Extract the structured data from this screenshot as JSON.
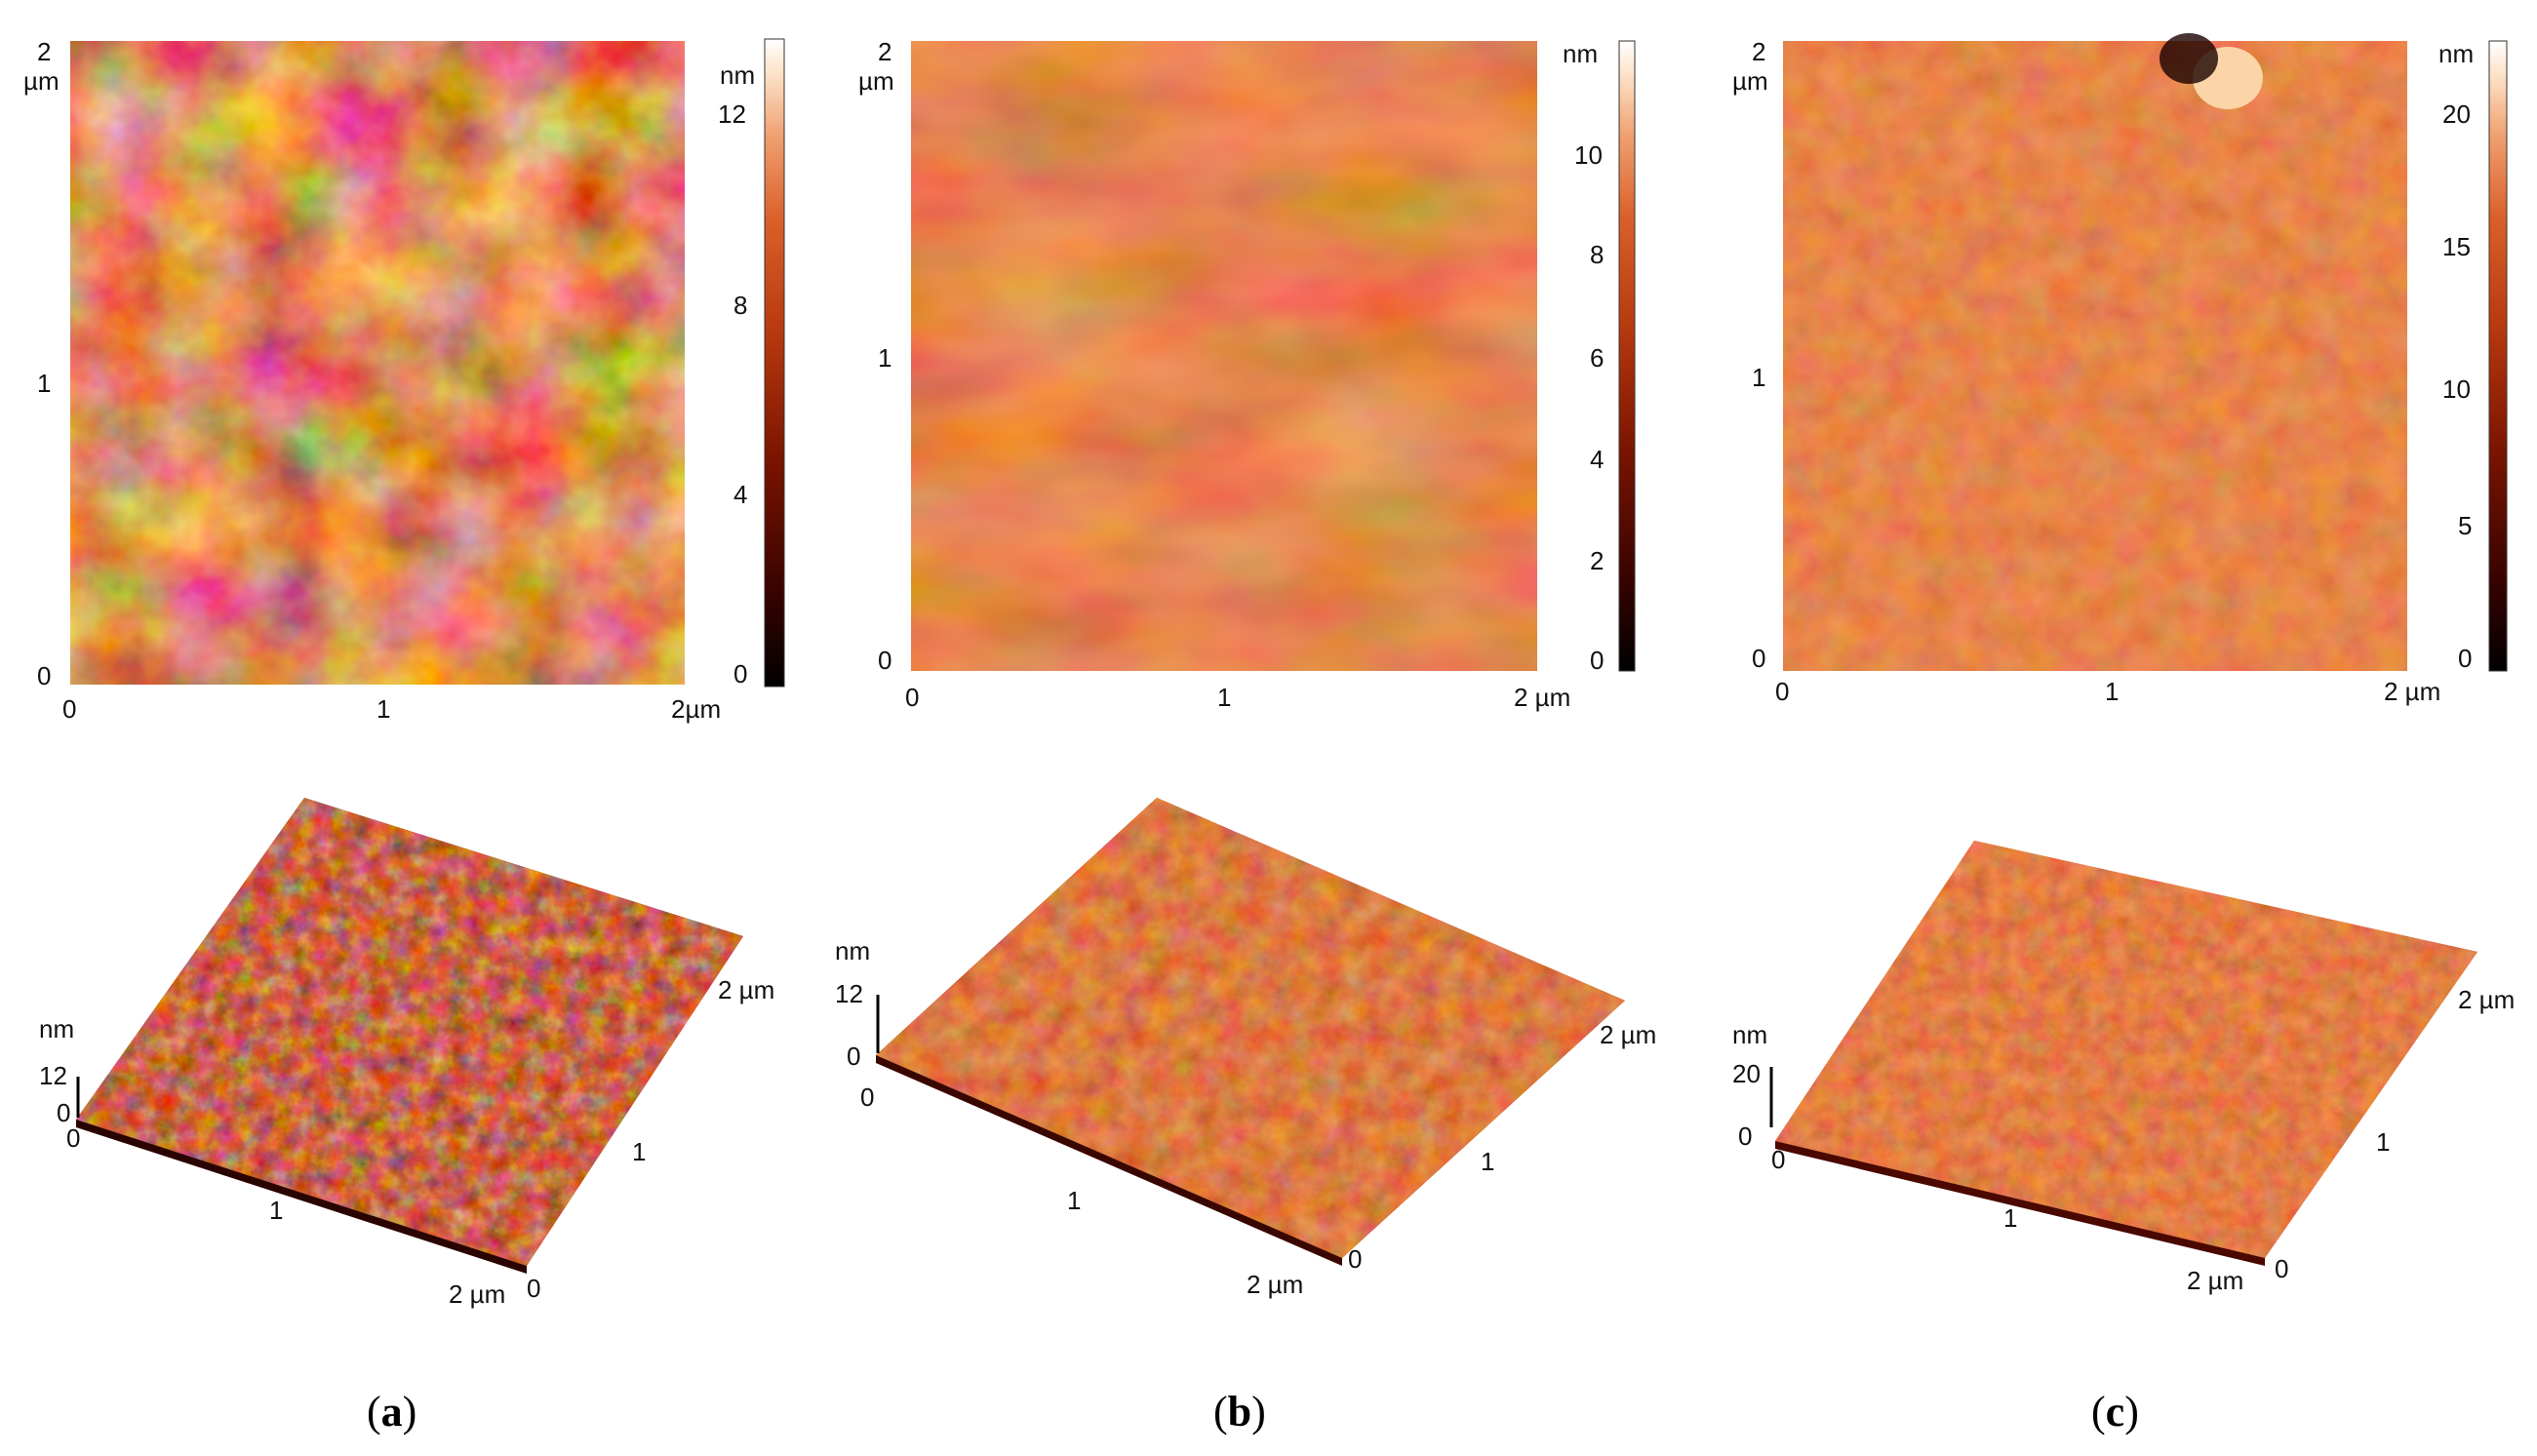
{
  "panels": [
    {
      "id": "a",
      "caption": {
        "open": "(",
        "letter": "a",
        "close": ")"
      },
      "map2d": {
        "y_top": "2",
        "y_unit": "µm",
        "y_mid": "1",
        "y_bottom": "0",
        "x_left": "0",
        "x_mid": "1",
        "x_right": "2µm",
        "colorbar_unit": "nm",
        "colorbar_ticks": [
          "12",
          "8",
          "4",
          "0"
        ],
        "max_height_nm": 13
      },
      "map3d": {
        "z_unit": "nm",
        "z_top": "12",
        "z_bottom": "0",
        "origin": "0",
        "front_mid": "1",
        "front_end": "2 µm",
        "corner_zero": "0",
        "right_mid": "1",
        "right_end": "2 µm"
      }
    },
    {
      "id": "b",
      "caption": {
        "open": "(",
        "letter": "b",
        "close": ")"
      },
      "map2d": {
        "y_top": "2",
        "y_unit": "µm",
        "y_mid": "1",
        "y_bottom": "0",
        "x_left": "0",
        "x_mid": "1",
        "x_right": "2 µm",
        "colorbar_unit": "nm",
        "colorbar_ticks": [
          "10",
          "8",
          "6",
          "4",
          "2",
          "0"
        ],
        "max_height_nm": 11.5
      },
      "map3d": {
        "z_unit": "nm",
        "z_top": "12",
        "z_bottom": "0",
        "origin": "0",
        "front_mid": "1",
        "front_end": "2 µm",
        "corner_zero": "0",
        "right_mid": "1",
        "right_end": "2 µm"
      }
    },
    {
      "id": "c",
      "caption": {
        "open": "(",
        "letter": "c",
        "close": ")"
      },
      "map2d": {
        "y_top": "2",
        "y_unit": "µm",
        "y_mid": "1",
        "y_bottom": "0",
        "x_left": "0",
        "x_mid": "1",
        "x_right": "2 µm",
        "colorbar_unit": "nm",
        "colorbar_ticks": [
          "20",
          "15",
          "10",
          "5",
          "0"
        ],
        "max_height_nm": 22
      },
      "map3d": {
        "z_unit": "nm",
        "z_top": "20",
        "z_bottom": "0",
        "origin": "0",
        "front_mid": "1",
        "front_end": "2 µm",
        "corner_zero": "0",
        "right_mid": "1",
        "right_end": "2 µm"
      }
    }
  ],
  "colors": {
    "colormap": [
      "#000000",
      "#3a0300",
      "#7a1400",
      "#b83a0f",
      "#d9602a",
      "#f0a070",
      "#fde5cc",
      "#ffffff"
    ]
  }
}
